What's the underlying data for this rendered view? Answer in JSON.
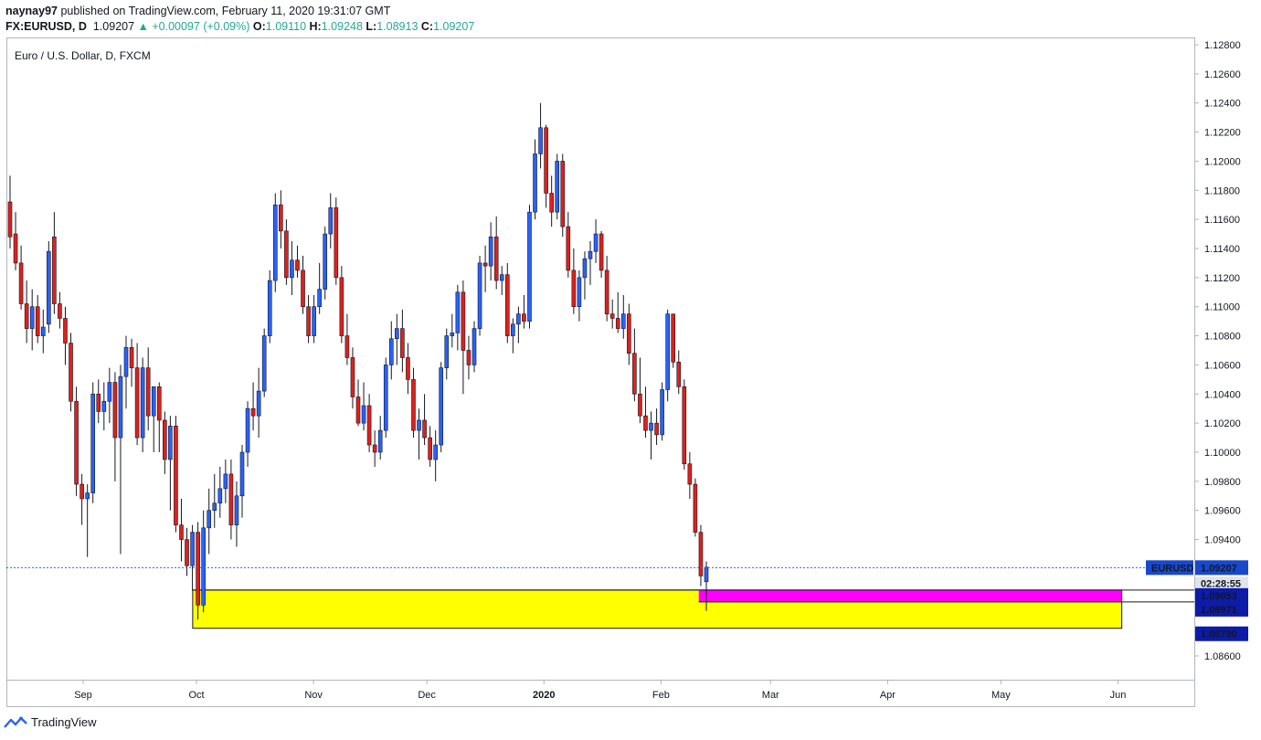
{
  "header": {
    "author": "naynay97",
    "published_text": "published on TradingView.com, February 11, 2020 19:31:07 GMT",
    "symbol": "FX:EURUSD, D",
    "last": "1.09207",
    "change": "▲ +0.00097 (+0.09%)",
    "o_label": "O:",
    "o_value": "1.09110",
    "h_label": "H:",
    "h_value": "1.09248",
    "l_label": "L:",
    "l_value": "1.08913",
    "c_label": "C:",
    "c_value": "1.09207"
  },
  "chart_title": "Euro / U.S. Dollar, D, FXCM",
  "footer": {
    "brand": "TradingView"
  },
  "colors": {
    "up": "#2962ff",
    "down": "#e0201b",
    "wick": "#131722",
    "yellow_zone": "#ffff00",
    "magenta_zone": "#ff00ff",
    "price_line": "#2962ff",
    "label_blue": "#1848cc",
    "label_navy": "#0c1ba8"
  },
  "chart_data": {
    "type": "candlestick",
    "y_ticks": [
      "1.12800",
      "1.12600",
      "1.12400",
      "1.12200",
      "1.12000",
      "1.11800",
      "1.11600",
      "1.11400",
      "1.11200",
      "1.11000",
      "1.10800",
      "1.10600",
      "1.10400",
      "1.10200",
      "1.10000",
      "1.09800",
      "1.09600",
      "1.09400",
      "1.09200",
      "1.08600"
    ],
    "ylim": [
      1.0845,
      1.129
    ],
    "x_labels": [
      "Sep",
      "Oct",
      "Nov",
      "Dec",
      "2020",
      "Feb",
      "Mar",
      "Apr",
      "May",
      "Jun"
    ],
    "x_label_dates": [
      "2019-09-01",
      "2019-10-01",
      "2019-11-01",
      "2019-12-01",
      "2020-01-01",
      "2020-02-01",
      "2020-03-01",
      "2020-04-01",
      "2020-05-01",
      "2020-06-01"
    ],
    "first_candle_date": "2019-08-12",
    "current_price_label": {
      "symbol": "EURUSD",
      "price": "1.09207",
      "countdown": "02:28:55"
    },
    "level_labels": [
      "1.09053",
      "1.08971",
      "1.08790"
    ],
    "zones": [
      {
        "color": "yellow",
        "from_date": "2019-09-30",
        "to_date": "2020-06-02",
        "top": 1.09053,
        "bottom": 1.0879
      },
      {
        "color": "magenta",
        "from_date": "2020-02-11",
        "to_date": "2020-06-02",
        "top": 1.09053,
        "bottom": 1.08971
      }
    ],
    "candles_ohlc": [
      [
        1.1172,
        1.119,
        1.114,
        1.1148
      ],
      [
        1.115,
        1.1165,
        1.1125,
        1.113
      ],
      [
        1.113,
        1.1142,
        1.1098,
        1.1102
      ],
      [
        1.1102,
        1.1118,
        1.1075,
        1.1085
      ],
      [
        1.1085,
        1.1112,
        1.107,
        1.11
      ],
      [
        1.11,
        1.1108,
        1.1075,
        1.108
      ],
      [
        1.108,
        1.1098,
        1.1068,
        1.1086
      ],
      [
        1.1088,
        1.1145,
        1.1082,
        1.1138
      ],
      [
        1.1148,
        1.1165,
        1.1095,
        1.1102
      ],
      [
        1.1102,
        1.111,
        1.1085,
        1.1092
      ],
      [
        1.1092,
        1.11,
        1.106,
        1.1075
      ],
      [
        1.1075,
        1.1082,
        1.1028,
        1.1035
      ],
      [
        1.1035,
        1.1045,
        1.097,
        1.0978
      ],
      [
        1.0978,
        1.0985,
        1.095,
        1.0968
      ],
      [
        1.0968,
        1.0978,
        1.0928,
        1.0972
      ],
      [
        1.0972,
        1.1048,
        1.0965,
        1.104
      ],
      [
        1.104,
        1.105,
        1.102,
        1.1028
      ],
      [
        1.1028,
        1.1048,
        1.1015,
        1.1035
      ],
      [
        1.1035,
        1.1058,
        1.102,
        1.1048
      ],
      [
        1.1048,
        1.1055,
        1.098,
        1.101
      ],
      [
        1.101,
        1.106,
        1.093,
        1.1052
      ],
      [
        1.1052,
        1.108,
        1.103,
        1.1072
      ],
      [
        1.1072,
        1.1078,
        1.1045,
        1.1058
      ],
      [
        1.1058,
        1.1075,
        1.1005,
        1.101
      ],
      [
        1.101,
        1.1065,
        1.1,
        1.1058
      ],
      [
        1.1058,
        1.1072,
        1.1015,
        1.1025
      ],
      [
        1.1025,
        1.1045,
        1.1,
        1.1045
      ],
      [
        1.1045,
        1.1048,
        1.1,
        1.1022
      ],
      [
        1.1022,
        1.1028,
        1.0985,
        1.0995
      ],
      [
        1.0995,
        1.1025,
        1.096,
        1.1018
      ],
      [
        1.1018,
        1.1025,
        1.0945,
        1.095
      ],
      [
        1.095,
        1.0968,
        1.0925,
        1.094
      ],
      [
        1.094,
        1.0948,
        1.0915,
        1.0922
      ],
      [
        1.0922,
        1.095,
        1.0905,
        1.0945
      ],
      [
        1.0945,
        1.0952,
        1.0885,
        1.0895
      ],
      [
        1.0895,
        1.096,
        1.089,
        1.0948
      ],
      [
        1.0948,
        1.0975,
        1.093,
        1.096
      ],
      [
        1.096,
        1.0985,
        1.0948,
        1.0965
      ],
      [
        1.0965,
        1.099,
        1.0955,
        1.0975
      ],
      [
        1.0975,
        1.0995,
        1.0965,
        1.0985
      ],
      [
        1.0985,
        1.0995,
        1.094,
        1.095
      ],
      [
        1.095,
        1.098,
        1.0935,
        1.097
      ],
      [
        1.097,
        1.1005,
        1.0955,
        1.1
      ],
      [
        1.1,
        1.1035,
        1.099,
        1.103
      ],
      [
        1.103,
        1.1048,
        1.1015,
        1.1025
      ],
      [
        1.1025,
        1.1058,
        1.101,
        1.1042
      ],
      [
        1.1042,
        1.1085,
        1.1038,
        1.108
      ],
      [
        1.108,
        1.1125,
        1.1075,
        1.1118
      ],
      [
        1.1118,
        1.1178,
        1.111,
        1.117
      ],
      [
        1.117,
        1.118,
        1.114,
        1.1152
      ],
      [
        1.1152,
        1.116,
        1.1115,
        1.112
      ],
      [
        1.112,
        1.1145,
        1.1108,
        1.1132
      ],
      [
        1.1132,
        1.1142,
        1.112,
        1.1125
      ],
      [
        1.1125,
        1.1135,
        1.1095,
        1.11
      ],
      [
        1.11,
        1.1108,
        1.1075,
        1.108
      ],
      [
        1.108,
        1.1108,
        1.1075,
        1.11
      ],
      [
        1.11,
        1.113,
        1.1095,
        1.1112
      ],
      [
        1.1112,
        1.1155,
        1.1105,
        1.115
      ],
      [
        1.115,
        1.1178,
        1.114,
        1.1168
      ],
      [
        1.1168,
        1.1175,
        1.1115,
        1.112
      ],
      [
        1.112,
        1.1128,
        1.1075,
        1.108
      ],
      [
        1.108,
        1.1095,
        1.106,
        1.1065
      ],
      [
        1.1065,
        1.1072,
        1.103,
        1.1038
      ],
      [
        1.1038,
        1.105,
        1.1018,
        1.102
      ],
      [
        1.102,
        1.1048,
        1.1015,
        1.1032
      ],
      [
        1.1032,
        1.104,
        1.1,
        1.1005
      ],
      [
        1.1005,
        1.1015,
        1.099,
        1.1
      ],
      [
        1.1,
        1.1025,
        1.0995,
        1.1015
      ],
      [
        1.1015,
        1.1065,
        1.101,
        1.106
      ],
      [
        1.106,
        1.109,
        1.105,
        1.1078
      ],
      [
        1.1078,
        1.1095,
        1.106,
        1.1085
      ],
      [
        1.1085,
        1.1098,
        1.1055,
        1.1065
      ],
      [
        1.1065,
        1.1075,
        1.104,
        1.105
      ],
      [
        1.105,
        1.1058,
        1.101,
        1.1015
      ],
      [
        1.1015,
        1.103,
        1.0995,
        1.1022
      ],
      [
        1.1022,
        1.104,
        1.1005,
        1.101
      ],
      [
        1.101,
        1.1018,
        1.099,
        1.0995
      ],
      [
        1.0995,
        1.1015,
        1.098,
        1.1005
      ],
      [
        1.1005,
        1.1062,
        1.1,
        1.1058
      ],
      [
        1.1058,
        1.1085,
        1.105,
        1.108
      ],
      [
        1.108,
        1.1095,
        1.1072,
        1.1082
      ],
      [
        1.1082,
        1.1115,
        1.107,
        1.111
      ],
      [
        1.111,
        1.1118,
        1.104,
        1.107
      ],
      [
        1.107,
        1.108,
        1.105,
        1.106
      ],
      [
        1.106,
        1.109,
        1.1055,
        1.1085
      ],
      [
        1.1085,
        1.1135,
        1.108,
        1.113
      ],
      [
        1.113,
        1.1142,
        1.111,
        1.1128
      ],
      [
        1.1128,
        1.1158,
        1.1118,
        1.1148
      ],
      [
        1.1148,
        1.1162,
        1.1112,
        1.1118
      ],
      [
        1.1118,
        1.1128,
        1.1108,
        1.1122
      ],
      [
        1.1122,
        1.113,
        1.1075,
        1.108
      ],
      [
        1.108,
        1.1092,
        1.1068,
        1.1088
      ],
      [
        1.1088,
        1.11,
        1.1075,
        1.1095
      ],
      [
        1.1095,
        1.1108,
        1.1085,
        1.109
      ],
      [
        1.109,
        1.117,
        1.1085,
        1.1165
      ],
      [
        1.1165,
        1.1215,
        1.116,
        1.1205
      ],
      [
        1.1205,
        1.124,
        1.1195,
        1.1223
      ],
      [
        1.1223,
        1.1225,
        1.1168,
        1.1178
      ],
      [
        1.1178,
        1.119,
        1.1155,
        1.1165
      ],
      [
        1.1165,
        1.1205,
        1.116,
        1.12
      ],
      [
        1.12,
        1.1205,
        1.1148,
        1.1155
      ],
      [
        1.1155,
        1.1165,
        1.112,
        1.1125
      ],
      [
        1.1125,
        1.114,
        1.1095,
        1.11
      ],
      [
        1.11,
        1.1125,
        1.109,
        1.112
      ],
      [
        1.112,
        1.1138,
        1.1105,
        1.1133
      ],
      [
        1.1133,
        1.1145,
        1.1115,
        1.1138
      ],
      [
        1.1138,
        1.116,
        1.113,
        1.115
      ],
      [
        1.115,
        1.1152,
        1.112,
        1.1125
      ],
      [
        1.1125,
        1.1135,
        1.109,
        1.1095
      ],
      [
        1.1095,
        1.1105,
        1.1085,
        1.1092
      ],
      [
        1.1092,
        1.111,
        1.1082,
        1.1085
      ],
      [
        1.1085,
        1.1108,
        1.1078,
        1.1095
      ],
      [
        1.1095,
        1.1102,
        1.106,
        1.1068
      ],
      [
        1.1068,
        1.1085,
        1.1035,
        1.104
      ],
      [
        1.104,
        1.1065,
        1.102,
        1.1025
      ],
      [
        1.1025,
        1.1045,
        1.101,
        1.1015
      ],
      [
        1.1015,
        1.1028,
        1.0995,
        1.102
      ],
      [
        1.102,
        1.103,
        1.1005,
        1.1012
      ],
      [
        1.1012,
        1.1048,
        1.1008,
        1.1043
      ],
      [
        1.1043,
        1.1098,
        1.1035,
        1.1095
      ],
      [
        1.1095,
        1.1095,
        1.1058,
        1.1062
      ],
      [
        1.1062,
        1.107,
        1.104,
        1.1045
      ],
      [
        1.1045,
        1.105,
        1.0988,
        1.0992
      ],
      [
        1.0992,
        1.1,
        1.0968,
        1.0978
      ],
      [
        1.0978,
        1.0982,
        1.0942,
        1.0945
      ],
      [
        1.0945,
        1.095,
        1.0908,
        1.0915
      ],
      [
        1.0911,
        1.0925,
        1.0891,
        1.0921
      ]
    ]
  }
}
